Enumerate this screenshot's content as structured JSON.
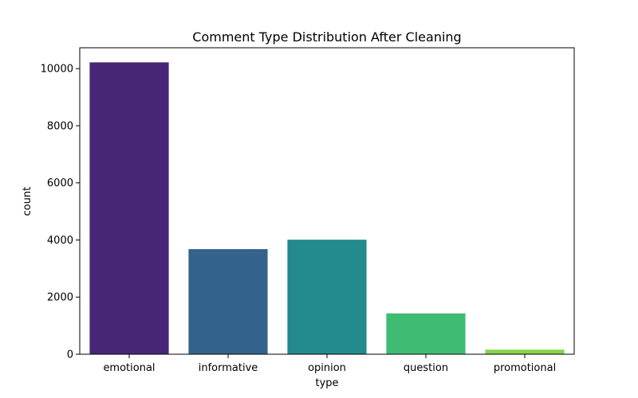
{
  "chart_data": {
    "type": "bar",
    "title": "Comment Type Distribution After Cleaning",
    "xlabel": "type",
    "ylabel": "count",
    "categories": [
      "emotional",
      "informative",
      "opinion",
      "question",
      "promotional"
    ],
    "values": [
      10220,
      3680,
      4010,
      1430,
      160
    ],
    "colors": [
      "#482677",
      "#33638d",
      "#238a8d",
      "#3fbc73",
      "#87d549"
    ],
    "ylim": [
      0,
      10731
    ],
    "yticks": [
      0,
      2000,
      4000,
      6000,
      8000,
      10000
    ],
    "ytick_labels": [
      "0",
      "2000",
      "4000",
      "6000",
      "8000",
      "10000"
    ],
    "grid": false,
    "legend": "none"
  }
}
